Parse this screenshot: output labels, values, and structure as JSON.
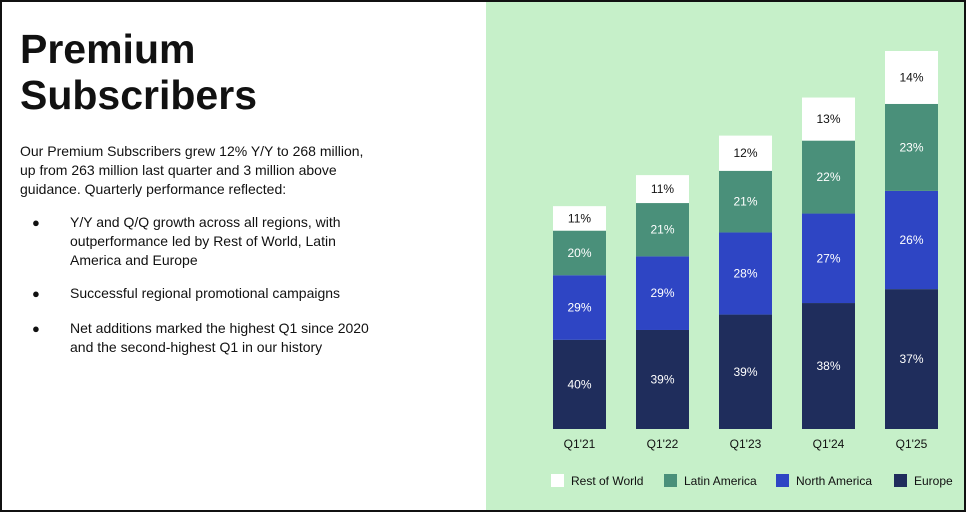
{
  "title_lines": [
    "Premium",
    "Subscribers"
  ],
  "intro": "Our Premium Subscribers grew 12% Y/Y to 268 million, up from 263 million last quarter and 3 million above guidance. Quarterly performance reflected:",
  "bullet_glyph": "●",
  "bullets": [
    "Y/Y and Q/Q growth across all regions, with outperformance led by Rest of World, Latin America and Europe",
    "Successful regional promotional campaigns",
    "Net additions marked the highest Q1 since 2020 and the second-highest Q1 in our history"
  ],
  "colors": {
    "panel_background": "#c6f0c9",
    "Europe": "#1f2d5c",
    "North America": "#2e45c4",
    "Latin America": "#4a907a",
    "Rest of World": "#ffffff"
  },
  "chart_data": {
    "type": "bar",
    "stacked": true,
    "categories": [
      "Q1'21",
      "Q1'22",
      "Q1'23",
      "Q1'24",
      "Q1'25"
    ],
    "series": [
      {
        "name": "Europe",
        "values": [
          40,
          39,
          39,
          38,
          37
        ]
      },
      {
        "name": "North America",
        "values": [
          29,
          29,
          28,
          27,
          26
        ]
      },
      {
        "name": "Latin America",
        "values": [
          20,
          21,
          21,
          22,
          23
        ]
      },
      {
        "name": "Rest of World",
        "values": [
          11,
          11,
          12,
          13,
          14
        ]
      }
    ],
    "value_suffix": "%",
    "relative_bar_totals": [
      158,
      180,
      208,
      235,
      268
    ],
    "legend_position": "bottom",
    "legend_order": [
      "Rest of World",
      "Latin America",
      "North America",
      "Europe"
    ],
    "grid": false,
    "title": "",
    "xlabel": "",
    "ylabel": ""
  }
}
